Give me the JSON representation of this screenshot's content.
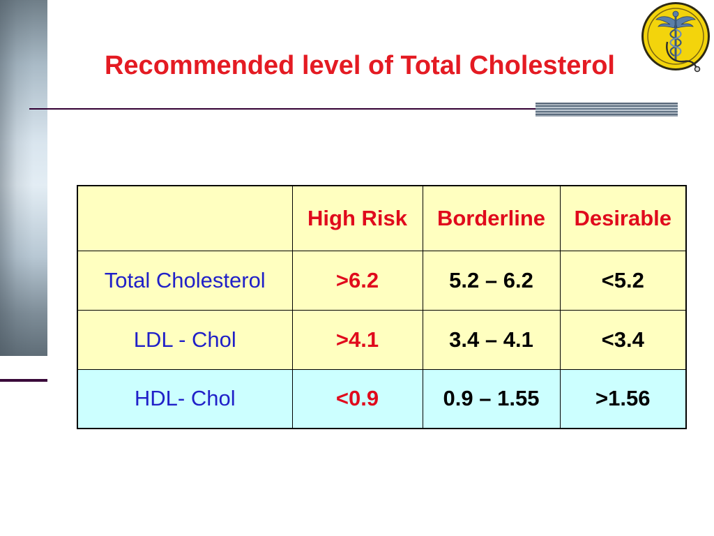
{
  "slide": {
    "title": "Recommended level of Total Cholesterol"
  },
  "logo": {
    "icon": "caduceus-emblem-icon"
  },
  "table": {
    "headers": [
      "High Risk",
      "Borderline",
      "Desirable"
    ],
    "rows": [
      {
        "label": "Total Cholesterol",
        "high_risk": ">6.2",
        "borderline": "5.2 – 6.2",
        "desirable": "<5.2"
      },
      {
        "label": "LDL - Chol",
        "high_risk": ">4.1",
        "borderline": "3.4 – 4.1",
        "desirable": "<3.4"
      },
      {
        "label": "HDL- Chol",
        "high_risk": "<0.9",
        "borderline": "0.9 – 1.55",
        "desirable": ">1.56"
      }
    ]
  },
  "colors": {
    "title": "#e41b23",
    "header_text": "#e00a1c",
    "row_label_text": "#2020c8",
    "high_risk_text": "#e00a1c",
    "value_text": "#000000",
    "cell_yellow": "#ffffc0",
    "cell_cyan": "#ccffff",
    "rule": "#330033"
  }
}
